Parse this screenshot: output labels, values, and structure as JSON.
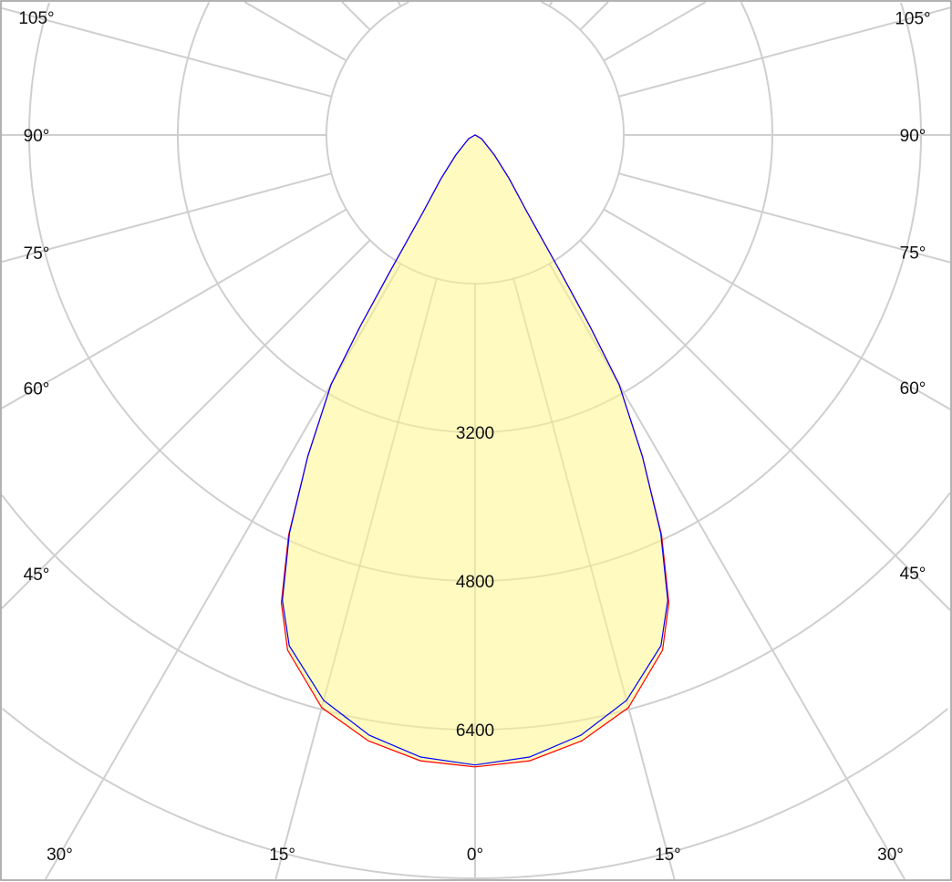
{
  "chart_data": {
    "type": "polar",
    "title": "",
    "angle_unit": "degrees",
    "angle_ticks": [
      "0°",
      "15°",
      "30°",
      "45°",
      "60°",
      "75°",
      "90°",
      "105°"
    ],
    "radial_ticks": [
      3200,
      4800,
      6400
    ],
    "radial_grid_step": 1600,
    "radial_max": 8000,
    "grid": true,
    "fill_color": "#fffbc0",
    "series": [
      {
        "color": "#ff0000",
        "angles": [
          0,
          5,
          10,
          15,
          20,
          22.5,
          25,
          27.5,
          30,
          31,
          32,
          34,
          38,
          44,
          60,
          90
        ],
        "values": [
          6800,
          6760,
          6620,
          6380,
          5900,
          5450,
          4750,
          3900,
          3100,
          2400,
          1700,
          1000,
          600,
          300,
          80,
          0
        ]
      },
      {
        "color": "#0000ff",
        "angles": [
          0,
          5,
          10,
          15,
          20,
          22.5,
          25,
          27.5,
          30,
          31,
          32,
          34,
          38,
          44,
          60,
          90
        ],
        "values": [
          6780,
          6720,
          6560,
          6300,
          5850,
          5420,
          4730,
          3900,
          3100,
          2400,
          1700,
          1000,
          600,
          300,
          80,
          0
        ]
      }
    ]
  }
}
